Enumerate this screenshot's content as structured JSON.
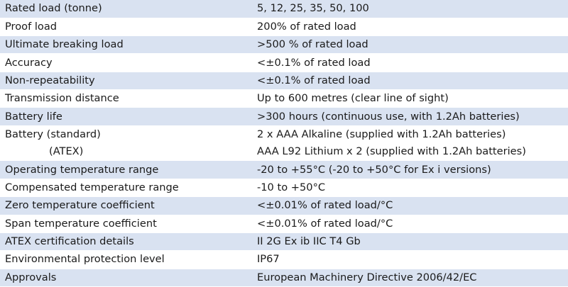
{
  "rows": [
    {
      "label": "Rated load (tonne)",
      "value": "5, 12, 25, 35, 50, 100"
    },
    {
      "label": "Proof load",
      "value": "200% of rated load"
    },
    {
      "label": "Ultimate breaking load",
      "value": ">500 % of rated load"
    },
    {
      "label": "Accuracy",
      "value": "<±0.1% of rated load"
    },
    {
      "label": "Non-repeatability",
      "value": "<±0.1% of rated load"
    },
    {
      "label": "Transmission distance",
      "value": "Up to 600 metres (clear line of sight)"
    },
    {
      "label": "Battery life",
      "value": ">300 hours (continuous use, with 1.2Ah batteries)"
    },
    {
      "label": "Battery (standard)",
      "value": "2 x AAA Alkaline (supplied with 1.2Ah batteries)",
      "sub_label": "(ATEX)",
      "sub_value": "AAA L92 Lithium x 2 (supplied with 1.2Ah batteries)"
    },
    {
      "label": "Operating temperature range",
      "value": "-20 to +55°C (-20 to +50°C for Ex i versions)"
    },
    {
      "label": "Compensated temperature range",
      "value": "-10 to +50°C"
    },
    {
      "label": "Zero temperature coefficient",
      "value": "<±0.01% of rated load/°C"
    },
    {
      "label": "Span temperature coefficient",
      "value": "<±0.01% of rated load/°C"
    },
    {
      "label": "ATEX certification details",
      "value": "II 2G Ex ib IIC T4 Gb"
    },
    {
      "label": "Environmental protection level",
      "value": "IP67"
    },
    {
      "label": "Approvals",
      "value": "European Machinery Directive 2006/42/EC"
    }
  ],
  "colors": {
    "shaded_row": "#d9e2f1",
    "plain_row": "#ffffff",
    "text": "#1a1a1a"
  }
}
